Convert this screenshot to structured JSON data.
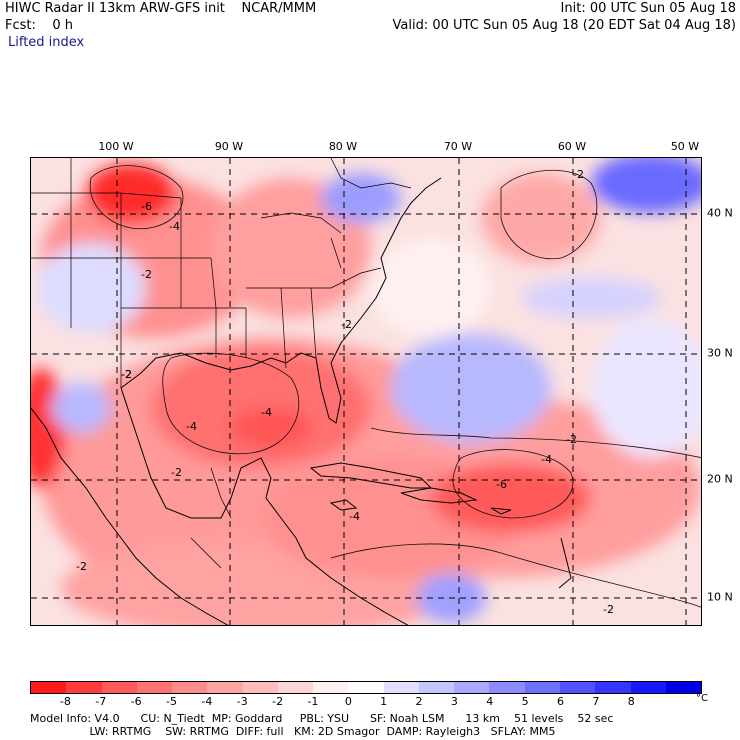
{
  "header": {
    "line1_left": "HIWC Radar II 13km ARW-GFS init    NCAR/MMM",
    "line1_right": "Init: 00 UTC Sun 05 Aug 18",
    "line2_left": "Fcst:    0 h",
    "line2_right": "Valid: 00 UTC Sun 05 Aug 18 (20 EDT Sat 04 Aug 18)",
    "line3_left": "Lifted index"
  },
  "map": {
    "longitude_labels": [
      "100 W",
      "90 W",
      "80 W",
      "70 W",
      "60 W",
      "50 W"
    ],
    "latitude_labels": [
      "40 N",
      "30 N",
      "20 N",
      "10 N"
    ],
    "contour_labels": [
      "-2",
      "-4",
      "-6",
      "-2",
      "-2",
      "-4",
      "-2",
      "-4",
      "-2",
      "-6",
      "-4",
      "-2",
      "-2",
      "-2",
      "-2",
      "-4"
    ]
  },
  "colorbar": {
    "colors": [
      "#ff1a1a",
      "#ff3b3b",
      "#ff5a5a",
      "#ff7373",
      "#ff8c8c",
      "#ffa3a3",
      "#ffbcbc",
      "#ffd6d6",
      "#fff0f0",
      "#ffffff",
      "#e1e1ff",
      "#c6c6ff",
      "#a9a9ff",
      "#8c8cff",
      "#6f6fff",
      "#5252ff",
      "#3535ff",
      "#1818ff",
      "#0000e6"
    ],
    "tick_labels": [
      "-8",
      "-7",
      "-6",
      "-5",
      "-4",
      "-3",
      "-2",
      "-1",
      "0",
      "1",
      "2",
      "3",
      "4",
      "5",
      "6",
      "7",
      "8"
    ],
    "unit": "°C"
  },
  "footer": {
    "line1": "Model Info: V4.0      CU: N_Tiedt  MP: Goddard     PBL: YSU      SF: Noah LSM      13 km    51 levels    52 sec",
    "line2": "                 LW: RRTMG    SW: RRTMG  DIFF: full   KM: 2D Smagor  DAMP: Rayleigh3   SFLAY: MM5"
  }
}
